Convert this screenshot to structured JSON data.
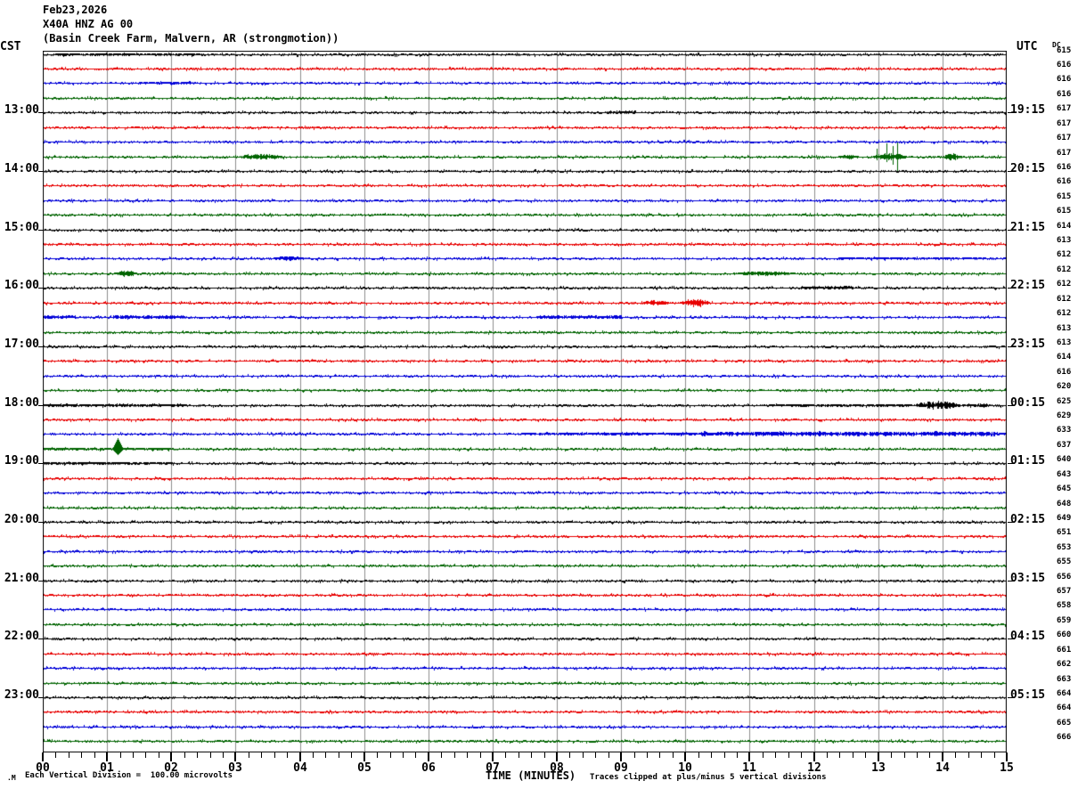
{
  "chart_data": {
    "type": "line",
    "subtype": "seismogram-helicorder",
    "title_date": "Feb23,2026",
    "station": "X40A HNZ AG 00",
    "location": "(Basin Creek Farm, Malvern, AR (strongmotion))",
    "left_axis_label": "CST",
    "right_axis_label": "UTC",
    "dc_label": "DC",
    "xlabel": "TIME (MINUTES)",
    "footer_mark": ".M",
    "footer_left": "Each Vertical Division =  100.00 microvolts",
    "footer_right": "Traces clipped at plus/minus 5 vertical divisions",
    "x_range_minutes": [
      0,
      15
    ],
    "x_ticks": [
      "00",
      "01",
      "02",
      "03",
      "04",
      "05",
      "06",
      "07",
      "08",
      "09",
      "10",
      "11",
      "12",
      "13",
      "14",
      "15"
    ],
    "minor_ticks_per_minute": 5,
    "grid": true,
    "colors": {
      "black": "#000000",
      "red": "#e80000",
      "blue": "#0000d8",
      "green": "#006400",
      "grid": "#8c8c8c",
      "border": "#000000"
    },
    "rows": [
      {
        "color": "black",
        "cst": "",
        "utc": "",
        "dc": "615",
        "events": [
          {
            "start": 0.2,
            "end": 2.5,
            "amp": 1.3,
            "type": "fuzz"
          }
        ]
      },
      {
        "color": "red",
        "cst": "",
        "utc": "",
        "dc": "616",
        "events": []
      },
      {
        "color": "blue",
        "cst": "",
        "utc": "",
        "dc": "616",
        "events": [
          {
            "start": 1.5,
            "end": 2.3,
            "amp": 1.5,
            "type": "fuzz"
          }
        ]
      },
      {
        "color": "green",
        "cst": "",
        "utc": "",
        "dc": "616",
        "events": []
      },
      {
        "color": "black",
        "cst": "13:00",
        "utc": "19:15",
        "dc": "617",
        "events": [
          {
            "start": 8.75,
            "end": 9.2,
            "amp": 1.8,
            "type": "fuzz"
          }
        ]
      },
      {
        "color": "red",
        "cst": "",
        "utc": "",
        "dc": "617",
        "events": []
      },
      {
        "color": "blue",
        "cst": "",
        "utc": "",
        "dc": "617",
        "events": []
      },
      {
        "color": "green",
        "cst": "",
        "utc": "",
        "dc": "617",
        "events": [
          {
            "start": 3.05,
            "end": 3.75,
            "amp": 4,
            "type": "burst"
          },
          {
            "start": 12.35,
            "end": 12.75,
            "amp": 2.5,
            "type": "burst"
          },
          {
            "start": 12.9,
            "end": 13.45,
            "amp": 20,
            "type": "bigburst"
          },
          {
            "start": 14.0,
            "end": 14.3,
            "amp": 4,
            "type": "burst"
          }
        ]
      },
      {
        "color": "black",
        "cst": "14:00",
        "utc": "20:15",
        "dc": "616",
        "events": []
      },
      {
        "color": "red",
        "cst": "",
        "utc": "",
        "dc": "616",
        "events": []
      },
      {
        "color": "blue",
        "cst": "",
        "utc": "",
        "dc": "615",
        "events": []
      },
      {
        "color": "green",
        "cst": "",
        "utc": "",
        "dc": "615",
        "events": []
      },
      {
        "color": "black",
        "cst": "15:00",
        "utc": "21:15",
        "dc": "614",
        "events": []
      },
      {
        "color": "red",
        "cst": "",
        "utc": "",
        "dc": "613",
        "events": []
      },
      {
        "color": "blue",
        "cst": "",
        "utc": "",
        "dc": "612",
        "events": [
          {
            "start": 3.55,
            "end": 4.1,
            "amp": 2.5,
            "type": "burst"
          },
          {
            "start": 12.4,
            "end": 14.7,
            "amp": 1.2,
            "type": "fuzz"
          }
        ]
      },
      {
        "color": "green",
        "cst": "",
        "utc": "",
        "dc": "612",
        "events": [
          {
            "start": 1.1,
            "end": 1.5,
            "amp": 3.5,
            "type": "burst"
          },
          {
            "start": 10.7,
            "end": 11.75,
            "amp": 2.5,
            "type": "burst"
          }
        ]
      },
      {
        "color": "black",
        "cst": "16:00",
        "utc": "22:15",
        "dc": "612",
        "events": [
          {
            "start": 11.8,
            "end": 12.6,
            "amp": 1.8,
            "type": "fuzz"
          }
        ]
      },
      {
        "color": "red",
        "cst": "",
        "utc": "",
        "dc": "612",
        "events": [
          {
            "start": 9.3,
            "end": 9.8,
            "amp": 3,
            "type": "burst"
          },
          {
            "start": 9.9,
            "end": 10.4,
            "amp": 5,
            "type": "burst"
          }
        ]
      },
      {
        "color": "blue",
        "cst": "",
        "utc": "",
        "dc": "612",
        "events": [
          {
            "start": 0.0,
            "end": 0.5,
            "amp": 2,
            "type": "fuzz"
          },
          {
            "start": 1.1,
            "end": 2.2,
            "amp": 2.2,
            "type": "fuzz"
          },
          {
            "start": 7.7,
            "end": 9.0,
            "amp": 2,
            "type": "fuzz"
          }
        ]
      },
      {
        "color": "green",
        "cst": "",
        "utc": "",
        "dc": "613",
        "events": []
      },
      {
        "color": "black",
        "cst": "17:00",
        "utc": "23:15",
        "dc": "613",
        "events": []
      },
      {
        "color": "red",
        "cst": "",
        "utc": "",
        "dc": "614",
        "events": []
      },
      {
        "color": "blue",
        "cst": "",
        "utc": "",
        "dc": "616",
        "events": []
      },
      {
        "color": "green",
        "cst": "",
        "utc": "",
        "dc": "620",
        "events": []
      },
      {
        "color": "black",
        "cst": "18:00",
        "utc": "00:15",
        "dc": "625",
        "events": [
          {
            "start": 0.0,
            "end": 2.2,
            "amp": 1.6,
            "type": "fuzz"
          },
          {
            "start": 11.3,
            "end": 13.5,
            "amp": 1.4,
            "type": "fuzz"
          },
          {
            "start": 13.55,
            "end": 14.3,
            "amp": 5,
            "type": "burst"
          },
          {
            "start": 14.3,
            "end": 14.7,
            "amp": 2,
            "type": "fuzz"
          }
        ]
      },
      {
        "color": "red",
        "cst": "",
        "utc": "",
        "dc": "629",
        "events": []
      },
      {
        "color": "blue",
        "cst": "",
        "utc": "",
        "dc": "633",
        "events": [
          {
            "start": 7.5,
            "end": 10.5,
            "amp": 1.6,
            "type": "fuzz"
          },
          {
            "start": 10.5,
            "end": 15.0,
            "amp": 2.5,
            "type": "fuzz"
          },
          {
            "start": 10.2,
            "end": 10.4,
            "amp": 4,
            "type": "burst"
          },
          {
            "start": 11.4,
            "end": 11.6,
            "amp": 4,
            "type": "burst"
          },
          {
            "start": 12.0,
            "end": 12.2,
            "amp": 3.5,
            "type": "burst"
          },
          {
            "start": 13.8,
            "end": 14.1,
            "amp": 4,
            "type": "burst"
          }
        ]
      },
      {
        "color": "green",
        "cst": "",
        "utc": "",
        "dc": "637",
        "events": [
          {
            "start": 0.0,
            "end": 2.0,
            "amp": 1.3,
            "type": "fuzz"
          },
          {
            "start": 1.08,
            "end": 1.25,
            "amp": 12,
            "type": "spike"
          }
        ]
      },
      {
        "color": "black",
        "cst": "19:00",
        "utc": "01:15",
        "dc": "640",
        "events": [
          {
            "start": 0.0,
            "end": 2.0,
            "amp": 1.5,
            "type": "fuzz"
          }
        ]
      },
      {
        "color": "red",
        "cst": "",
        "utc": "",
        "dc": "643",
        "events": []
      },
      {
        "color": "blue",
        "cst": "",
        "utc": "",
        "dc": "645",
        "events": []
      },
      {
        "color": "green",
        "cst": "",
        "utc": "",
        "dc": "648",
        "events": []
      },
      {
        "color": "black",
        "cst": "20:00",
        "utc": "02:15",
        "dc": "649",
        "events": []
      },
      {
        "color": "red",
        "cst": "",
        "utc": "",
        "dc": "651",
        "events": []
      },
      {
        "color": "blue",
        "cst": "",
        "utc": "",
        "dc": "653",
        "events": []
      },
      {
        "color": "green",
        "cst": "",
        "utc": "",
        "dc": "655",
        "events": []
      },
      {
        "color": "black",
        "cst": "21:00",
        "utc": "03:15",
        "dc": "656",
        "events": []
      },
      {
        "color": "red",
        "cst": "",
        "utc": "",
        "dc": "657",
        "events": []
      },
      {
        "color": "blue",
        "cst": "",
        "utc": "",
        "dc": "658",
        "events": []
      },
      {
        "color": "green",
        "cst": "",
        "utc": "",
        "dc": "659",
        "events": []
      },
      {
        "color": "black",
        "cst": "22:00",
        "utc": "04:15",
        "dc": "660",
        "events": []
      },
      {
        "color": "red",
        "cst": "",
        "utc": "",
        "dc": "661",
        "events": []
      },
      {
        "color": "blue",
        "cst": "",
        "utc": "",
        "dc": "662",
        "events": []
      },
      {
        "color": "green",
        "cst": "",
        "utc": "",
        "dc": "663",
        "events": []
      },
      {
        "color": "black",
        "cst": "23:00",
        "utc": "05:15",
        "dc": "664",
        "events": []
      },
      {
        "color": "red",
        "cst": "",
        "utc": "",
        "dc": "664",
        "events": []
      },
      {
        "color": "blue",
        "cst": "",
        "utc": "",
        "dc": "665",
        "events": []
      },
      {
        "color": "green",
        "cst": "",
        "utc": "",
        "dc": "666",
        "events": []
      }
    ]
  }
}
